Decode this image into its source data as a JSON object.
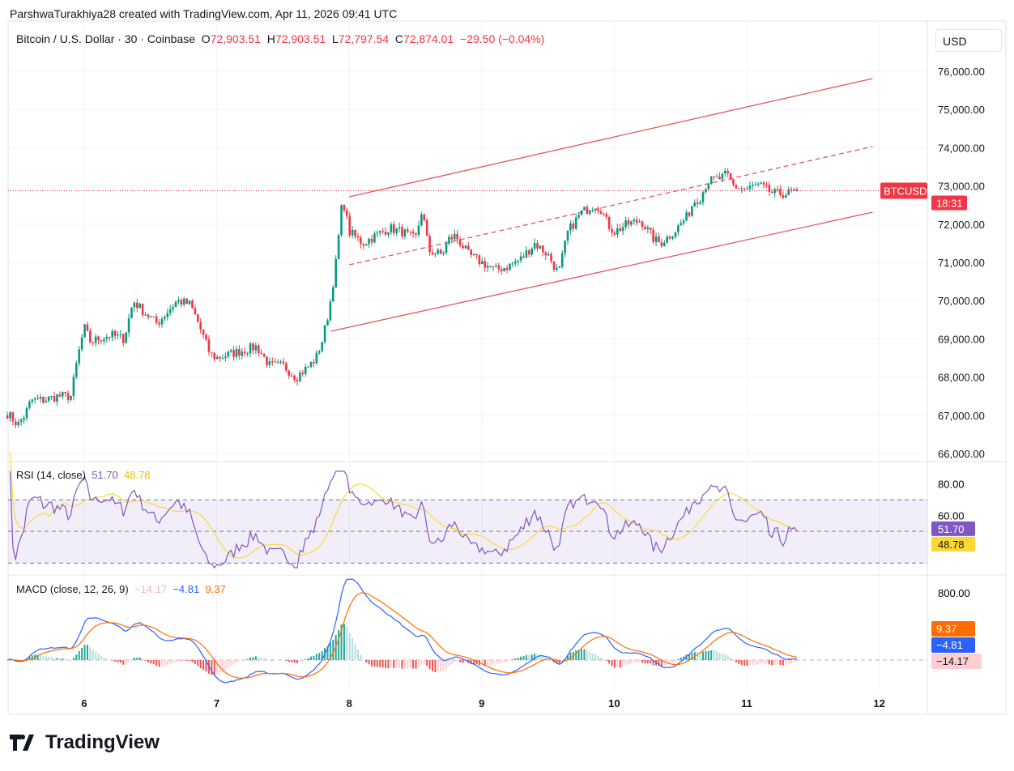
{
  "header": {
    "credit": "ParshwaTurakhiya28 created with TradingView.com, Apr 11, 2026 09:41 UTC"
  },
  "legend": {
    "symbol": "Bitcoin / U.S. Dollar · 30 · Coinbase",
    "o_label": "O",
    "o": "72,903.51",
    "h_label": "H",
    "h": "72,903.51",
    "l_label": "L",
    "l": "72,797.54",
    "c_label": "C",
    "c": "72,874.01",
    "change": "−29.50 (−0.04%)"
  },
  "currency": "USD",
  "last_price": {
    "symbol": "BTCUSD",
    "countdown": "18:31",
    "value": 72874.01
  },
  "logo": "TradingView",
  "colors": {
    "up": "#089981",
    "down": "#f23645",
    "rsi": "#7e57c2",
    "rsi_ma": "#fdd835",
    "macd": "#2962ff",
    "signal": "#ff6d00",
    "channel": "#e05a5f"
  },
  "chart_data": [
    {
      "type": "candlestick",
      "title": "Bitcoin / U.S. Dollar · 30 · Coinbase",
      "x_ticks": [
        "6",
        "7",
        "8",
        "9",
        "10",
        "11",
        "12"
      ],
      "x_tick_values": [
        6,
        7,
        8,
        9,
        10,
        11,
        12
      ],
      "xlim": [
        5.42,
        12.4
      ],
      "y_ticks": [
        "66,000.00",
        "67,000.00",
        "68,000.00",
        "69,000.00",
        "70,000.00",
        "71,000.00",
        "72,000.00",
        "73,000.00",
        "74,000.00",
        "75,000.00",
        "76,000.00"
      ],
      "y_tick_values": [
        66000,
        67000,
        68000,
        69000,
        70000,
        71000,
        72000,
        73000,
        74000,
        75000,
        76000
      ],
      "ylim": [
        65600,
        76900
      ],
      "close_path": [
        [
          5.42,
          67050
        ],
        [
          5.5,
          66750
        ],
        [
          5.55,
          67000
        ],
        [
          5.6,
          67400
        ],
        [
          5.7,
          67400
        ],
        [
          5.8,
          67500
        ],
        [
          5.9,
          67500
        ],
        [
          5.95,
          68500
        ],
        [
          6.0,
          69300
        ],
        [
          6.05,
          68900
        ],
        [
          6.1,
          69000
        ],
        [
          6.2,
          69100
        ],
        [
          6.3,
          69000
        ],
        [
          6.37,
          70000
        ],
        [
          6.45,
          69700
        ],
        [
          6.55,
          69400
        ],
        [
          6.65,
          69800
        ],
        [
          6.7,
          70000
        ],
        [
          6.8,
          69900
        ],
        [
          6.85,
          69500
        ],
        [
          6.95,
          68600
        ],
        [
          7.0,
          68500
        ],
        [
          7.1,
          68600
        ],
        [
          7.2,
          68700
        ],
        [
          7.3,
          68800
        ],
        [
          7.4,
          68300
        ],
        [
          7.5,
          68300
        ],
        [
          7.6,
          68000
        ],
        [
          7.7,
          68300
        ],
        [
          7.75,
          68500
        ],
        [
          7.8,
          69000
        ],
        [
          7.85,
          69800
        ],
        [
          7.9,
          71000
        ],
        [
          7.95,
          72700
        ],
        [
          8.0,
          71800
        ],
        [
          8.1,
          71500
        ],
        [
          8.2,
          71700
        ],
        [
          8.3,
          71900
        ],
        [
          8.4,
          71800
        ],
        [
          8.5,
          71600
        ],
        [
          8.55,
          72400
        ],
        [
          8.6,
          71300
        ],
        [
          8.7,
          71200
        ],
        [
          8.75,
          71600
        ],
        [
          8.8,
          71700
        ],
        [
          8.9,
          71200
        ],
        [
          9.0,
          71000
        ],
        [
          9.1,
          70800
        ],
        [
          9.2,
          70900
        ],
        [
          9.3,
          71100
        ],
        [
          9.4,
          71500
        ],
        [
          9.5,
          71200
        ],
        [
          9.58,
          70700
        ],
        [
          9.65,
          71800
        ],
        [
          9.75,
          72300
        ],
        [
          9.85,
          72500
        ],
        [
          9.9,
          72400
        ],
        [
          9.95,
          72000
        ],
        [
          10.0,
          71800
        ],
        [
          10.1,
          72000
        ],
        [
          10.2,
          72100
        ],
        [
          10.3,
          71600
        ],
        [
          10.35,
          71500
        ],
        [
          10.45,
          71800
        ],
        [
          10.55,
          72200
        ],
        [
          10.6,
          72600
        ],
        [
          10.65,
          72700
        ],
        [
          10.7,
          73100
        ],
        [
          10.8,
          73200
        ],
        [
          10.85,
          73300
        ],
        [
          10.9,
          73000
        ],
        [
          11.0,
          72900
        ],
        [
          11.05,
          73000
        ],
        [
          11.1,
          73000
        ],
        [
          11.2,
          72800
        ],
        [
          11.3,
          72800
        ],
        [
          11.39,
          72874
        ]
      ],
      "trend_lines": [
        {
          "style": "solid",
          "from": [
            8.0,
            72716
          ],
          "to": [
            11.95,
            75810
          ]
        },
        {
          "style": "dashed",
          "from": [
            8.0,
            70937
          ],
          "to": [
            11.95,
            74030
          ]
        },
        {
          "style": "solid",
          "from": [
            7.86,
            69200
          ],
          "to": [
            11.95,
            72314
          ]
        }
      ]
    },
    {
      "type": "line",
      "title": "RSI (14, close)",
      "values_label": [
        "51.70",
        "48.78"
      ],
      "series": [
        {
          "name": "RSI",
          "last": "51.70"
        },
        {
          "name": "RSI MA",
          "last": "48.78"
        }
      ],
      "y_ticks": [
        "60.00",
        "80.00"
      ],
      "y_tick_values": [
        60,
        80
      ],
      "band": [
        30,
        70
      ],
      "midline": 50,
      "ylim": [
        25,
        90
      ]
    },
    {
      "type": "line",
      "title": "MACD (close, 12, 26, 9)",
      "values_label": [
        "−14.17",
        "−4.81",
        "9.37"
      ],
      "series": [
        {
          "name": "Histogram",
          "last": "−14.17"
        },
        {
          "name": "MACD",
          "last": "−4.81"
        },
        {
          "name": "Signal",
          "last": "9.37"
        }
      ],
      "y_ticks": [
        "800.00"
      ],
      "y_tick_values": [
        800
      ],
      "ylim": [
        -480,
        1000
      ]
    }
  ]
}
